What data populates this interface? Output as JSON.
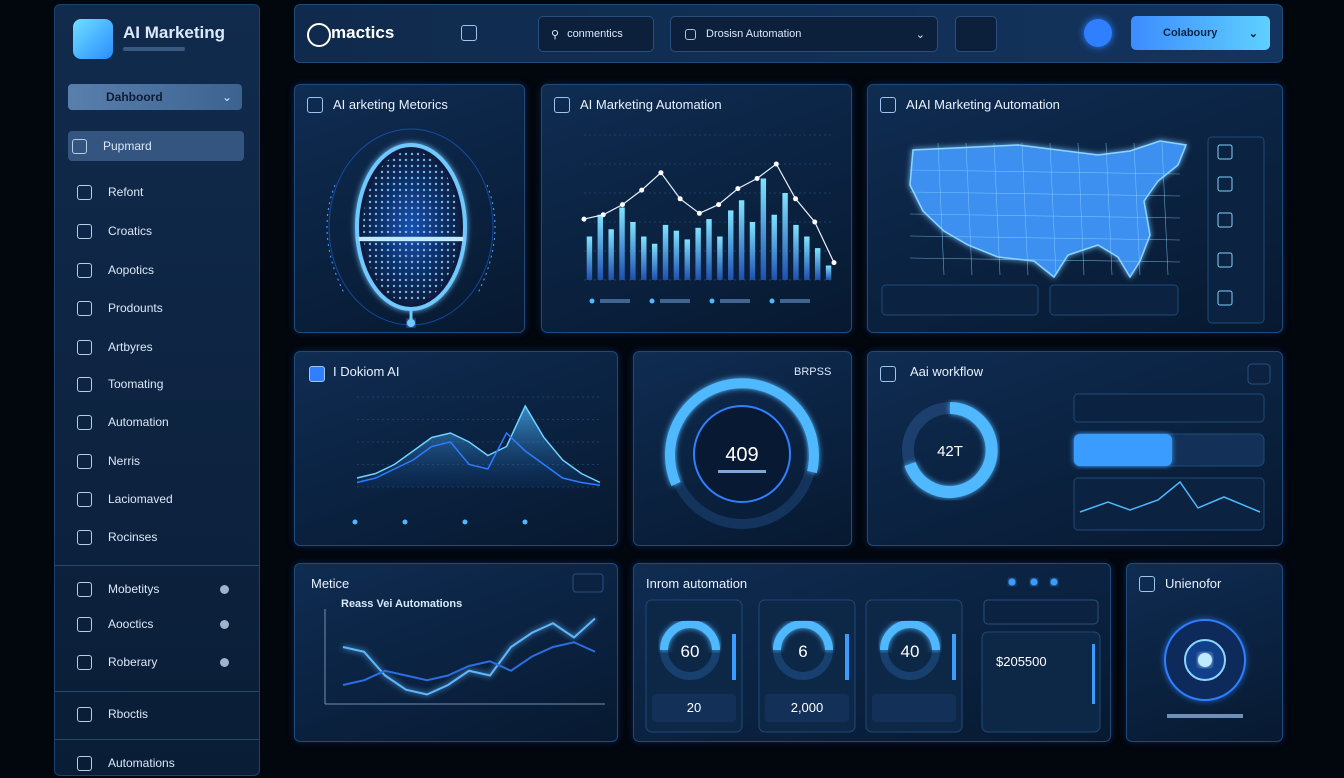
{
  "sidebar": {
    "title": "AI Marketing",
    "dropdown": "Dahboord",
    "items": [
      "Pupmard",
      "Refont",
      "Croatics",
      "Aopotics",
      "Prodounts",
      "Artbyres",
      "Toomating",
      "Automation",
      "Nerris",
      "Laciomaved",
      "Rocinses",
      "Mobetitys",
      "Aooctics",
      "Roberary",
      "Rboctis",
      "Automations"
    ]
  },
  "topbar": {
    "logo": "mactics",
    "search": "conmentics",
    "select": "Drosisn Automation",
    "button": "Colaboury"
  },
  "metrics_panel": {
    "title": "AI arketing Metorics"
  },
  "bar_panel": {
    "title": "AI Marketing Automation",
    "type": "bar",
    "ylim": [
      0,
      100
    ],
    "values": [
      30,
      45,
      35,
      50,
      40,
      30,
      25,
      38,
      34,
      28,
      36,
      42,
      30,
      48,
      55,
      40,
      70,
      45,
      60,
      38,
      30,
      22,
      10
    ],
    "trend": [
      42,
      45,
      52,
      62,
      74,
      56,
      46,
      52,
      63,
      70,
      80,
      56,
      40,
      12
    ]
  },
  "map_panel": {
    "title": "AIAI Marketing Automation"
  },
  "area_panel": {
    "title": "I Dokiom AI",
    "type": "area",
    "ylim": [
      0,
      100
    ],
    "series": [
      {
        "color": "#6fd3ff",
        "values": [
          10,
          15,
          25,
          40,
          55,
          60,
          50,
          35,
          45,
          90,
          55,
          30,
          15,
          5
        ]
      },
      {
        "color": "#2e7bff",
        "values": [
          5,
          10,
          20,
          30,
          45,
          50,
          25,
          20,
          60,
          40,
          25,
          10,
          5,
          2
        ]
      }
    ]
  },
  "gauge_panel": {
    "label": "BRPSS",
    "value": "409"
  },
  "workflow_panel": {
    "title": "Aai workflow",
    "ring": "42T"
  },
  "line_panel": {
    "title": "Metice",
    "subtitle": "Reass Vei Automations",
    "type": "line",
    "ylim": [
      0,
      100
    ],
    "series": [
      {
        "color": "#5fb8ff",
        "values": [
          60,
          55,
          30,
          15,
          10,
          20,
          35,
          30,
          60,
          75,
          85,
          70,
          90
        ]
      },
      {
        "color": "#2a6fe0",
        "values": [
          20,
          25,
          35,
          30,
          25,
          30,
          40,
          45,
          35,
          50,
          60,
          65,
          55
        ]
      }
    ]
  },
  "automation_panel": {
    "title": "Inrom automation",
    "gauges": [
      "60",
      "6",
      "40"
    ],
    "card_values": [
      "20",
      "2,000"
    ],
    "amount": "$205500"
  },
  "info_panel": {
    "title": "Unienofor"
  }
}
